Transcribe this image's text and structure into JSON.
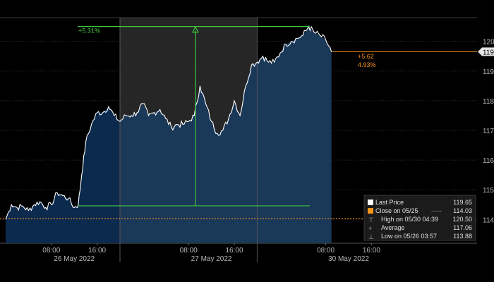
{
  "chart_data": {
    "type": "area",
    "xlim": [
      0,
      84
    ],
    "ylim": [
      113.2,
      120.8
    ],
    "y_ticks": [
      114,
      115,
      116,
      117,
      118,
      119,
      120
    ],
    "time_ticks": [
      {
        "x": 8,
        "label": "08:00"
      },
      {
        "x": 16,
        "label": "16:00"
      },
      {
        "x": 32,
        "label": "08:00"
      },
      {
        "x": 40,
        "label": "16:00"
      },
      {
        "x": 56,
        "label": "08:00"
      },
      {
        "x": 64,
        "label": "16:00"
      }
    ],
    "day_labels": [
      {
        "x": 12,
        "label": "26 May 2022"
      },
      {
        "x": 36,
        "label": "27 May 2022"
      },
      {
        "x": 60,
        "label": "30 May 2022"
      }
    ],
    "day_dividers": [
      20,
      44
    ],
    "shaded_regions": [
      [
        20,
        44
      ],
      [
        44,
        57
      ]
    ],
    "series": [
      {
        "values": [
          [
            0,
            114.0
          ],
          [
            1,
            114.5
          ],
          [
            2,
            114.4
          ],
          [
            3,
            114.45
          ],
          [
            4,
            114.3
          ],
          [
            5,
            114.5
          ],
          [
            6,
            114.6
          ],
          [
            7,
            114.4
          ],
          [
            8,
            114.5
          ],
          [
            9,
            114.9
          ],
          [
            10,
            114.8
          ],
          [
            11,
            114.7
          ],
          [
            12,
            114.4
          ],
          [
            12.7,
            114.5
          ],
          [
            13.3,
            115.5
          ],
          [
            14,
            116.6
          ],
          [
            15,
            117.2
          ],
          [
            16,
            117.6
          ],
          [
            17,
            117.6
          ],
          [
            18,
            117.8
          ],
          [
            19,
            117.5
          ],
          [
            20,
            117.3
          ],
          [
            21,
            117.5
          ],
          [
            22,
            117.5
          ],
          [
            23,
            117.6
          ],
          [
            24,
            117.9
          ],
          [
            25,
            117.5
          ],
          [
            26,
            117.6
          ],
          [
            27,
            117.7
          ],
          [
            28,
            117.4
          ],
          [
            29,
            117.1
          ],
          [
            30,
            117.2
          ],
          [
            31,
            117.2
          ],
          [
            32,
            117.3
          ],
          [
            33,
            117.5
          ],
          [
            34,
            118.5
          ],
          [
            35,
            117.9
          ],
          [
            36,
            117.3
          ],
          [
            37,
            116.9
          ],
          [
            38,
            117.0
          ],
          [
            39,
            117.4
          ],
          [
            40,
            118.0
          ],
          [
            41,
            117.5
          ],
          [
            42,
            118.5
          ],
          [
            43,
            119.2
          ],
          [
            44,
            119.3
          ],
          [
            45,
            119.5
          ],
          [
            46,
            119.3
          ],
          [
            47,
            119.3
          ],
          [
            48,
            119.6
          ],
          [
            49,
            119.9
          ],
          [
            50,
            120.0
          ],
          [
            51,
            120.1
          ],
          [
            52,
            120.2
          ],
          [
            53,
            120.5
          ],
          [
            54,
            120.3
          ],
          [
            55,
            120.2
          ],
          [
            56,
            120.05
          ],
          [
            57,
            119.65
          ]
        ]
      }
    ],
    "last_price": {
      "value": 119.65,
      "label": "119.65"
    },
    "close_level": {
      "value": 114.03
    },
    "change_label": {
      "abs": "+5.62",
      "pct": "4.93%"
    },
    "range_annotation": {
      "label": "+5.31%",
      "high": 120.5,
      "low": 114.46,
      "x_start": 12.6,
      "x_end": 53.2,
      "x_arrow": 33.2
    },
    "legend": [
      {
        "label": "Last Price",
        "value": "119.65",
        "marker": "square",
        "color": "#ffffff"
      },
      {
        "label": "Close on 05/25",
        "value": "114.03",
        "marker": "square",
        "color": "#f7941d",
        "dashes": "-----"
      },
      {
        "label": "High on 05/30 04:39",
        "value": "120.50",
        "marker": "high"
      },
      {
        "label": "Average",
        "value": "117.06",
        "marker": "plus"
      },
      {
        "label": "Low on 05/26 03:57",
        "value": "113.88",
        "marker": "low"
      }
    ],
    "colors": {
      "background": "#000000",
      "area_fill": "#0c2a4d",
      "area_fill_highlight": "#1a3858",
      "line": "#ffffff",
      "annotation": "#3ec83e",
      "close_line": "#f7941d",
      "gray_band": "#262626",
      "axis_text": "#b7b7b7"
    }
  }
}
